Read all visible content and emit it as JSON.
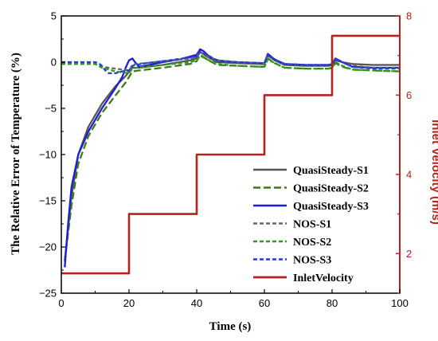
{
  "chart_data": {
    "type": "line",
    "xlabel": "Time (s)",
    "ylabel_left": "The Relative Error of  Temperature (%)",
    "ylabel_right": "Inlet Velocity (m/s)",
    "xlim": [
      0,
      100
    ],
    "ylim_left": [
      -25,
      5
    ],
    "ylim_right": [
      1,
      8
    ],
    "x_ticks": [
      0,
      20,
      40,
      60,
      80,
      100
    ],
    "y_left_ticks": [
      5,
      0,
      -5,
      -10,
      -15,
      -20,
      -25
    ],
    "y_right_ticks": [
      2,
      4,
      6,
      8
    ],
    "y_left_tick_labels": [
      "5",
      "0",
      "−5",
      "−10",
      "−15",
      "−20",
      "−25"
    ],
    "grid": false,
    "legend_position": "lower-right",
    "series": [
      {
        "name": "QuasiSteady-S1",
        "axis": "left",
        "color": "#555555",
        "dash": "solid",
        "x": [
          1,
          3,
          5,
          8,
          12,
          16,
          19,
          21,
          23,
          30,
          38,
          40,
          41,
          43,
          46,
          52,
          59,
          60,
          61,
          63,
          66,
          72,
          79,
          80,
          81,
          83,
          86,
          92,
          100
        ],
        "y": [
          -21.5,
          -14.5,
          -10.0,
          -7.0,
          -4.5,
          -2.6,
          -1.5,
          -0.6,
          -0.6,
          -0.3,
          0.2,
          0.4,
          1.1,
          0.6,
          0.0,
          -0.1,
          -0.2,
          -0.2,
          0.7,
          0.2,
          -0.3,
          -0.4,
          -0.4,
          -0.3,
          0.2,
          0.0,
          -0.2,
          -0.3,
          -0.3
        ]
      },
      {
        "name": "QuasiSteady-S2",
        "axis": "left",
        "color": "#3f7a1a",
        "dash": "long-dash",
        "x": [
          1,
          3,
          5,
          8,
          12,
          16,
          19,
          21,
          23,
          30,
          38,
          40,
          41,
          43,
          46,
          52,
          59,
          60,
          61,
          63,
          66,
          72,
          79,
          80,
          81,
          83,
          86,
          92,
          100
        ],
        "y": [
          -21.5,
          -15.5,
          -11.0,
          -8.0,
          -5.5,
          -3.6,
          -2.2,
          -1.0,
          -0.9,
          -0.6,
          -0.2,
          0.1,
          0.8,
          0.3,
          -0.3,
          -0.4,
          -0.5,
          -0.5,
          0.4,
          -0.1,
          -0.6,
          -0.7,
          -0.7,
          -0.6,
          -0.1,
          -0.5,
          -0.8,
          -0.9,
          -1.0
        ]
      },
      {
        "name": "QuasiSteady-S3",
        "axis": "left",
        "color": "#1f1fd6",
        "dash": "solid",
        "x": [
          1,
          2,
          3,
          5,
          8,
          12,
          16,
          18,
          19,
          20,
          21,
          22,
          23,
          26,
          30,
          35,
          38,
          40,
          41,
          42,
          44,
          47,
          52,
          59,
          60,
          61,
          63,
          66,
          72,
          79,
          80,
          81,
          83,
          86,
          92,
          100
        ],
        "y": [
          -22.2,
          -17.5,
          -13.5,
          -10.0,
          -7.5,
          -5.0,
          -2.8,
          -1.6,
          -0.6,
          0.2,
          0.4,
          -0.1,
          -0.5,
          -0.3,
          0.0,
          0.3,
          0.6,
          0.8,
          1.4,
          1.2,
          0.5,
          0.1,
          0.0,
          -0.1,
          -0.1,
          0.9,
          0.3,
          -0.2,
          -0.3,
          -0.3,
          -0.2,
          0.4,
          0.0,
          -0.5,
          -0.6,
          -0.6
        ]
      },
      {
        "name": "NOS-S1",
        "axis": "left",
        "color": "#666666",
        "dash": "short-dash",
        "x": [
          0,
          5,
          10,
          12,
          14,
          16,
          18,
          20,
          21,
          22,
          25,
          30,
          38,
          40,
          41,
          43,
          46,
          52,
          59,
          60,
          61,
          63,
          66,
          72,
          79,
          80,
          81,
          83,
          86,
          92,
          100
        ],
        "y": [
          -0.2,
          -0.2,
          -0.2,
          -0.5,
          -0.6,
          -0.7,
          -0.8,
          -0.9,
          -0.3,
          -0.2,
          -0.1,
          0.1,
          0.4,
          0.6,
          1.1,
          0.7,
          0.2,
          0.0,
          -0.1,
          -0.1,
          0.7,
          0.3,
          -0.2,
          -0.3,
          -0.3,
          -0.2,
          0.4,
          0.0,
          -0.4,
          -0.6,
          -0.6
        ]
      },
      {
        "name": "NOS-S2",
        "axis": "left",
        "color": "#2e9a1e",
        "dash": "short-dash",
        "x": [
          0,
          5,
          10,
          12,
          14,
          16,
          18,
          20,
          21,
          22,
          25,
          30,
          38,
          40,
          41,
          43,
          46,
          52,
          59,
          60,
          61,
          63,
          66,
          72,
          79,
          80,
          81,
          83,
          86,
          92,
          100
        ],
        "y": [
          -0.2,
          -0.2,
          -0.2,
          -0.6,
          -0.8,
          -1.0,
          -1.1,
          -1.2,
          -0.7,
          -0.6,
          -0.5,
          -0.3,
          0.0,
          0.2,
          0.7,
          0.3,
          -0.2,
          -0.4,
          -0.5,
          -0.5,
          0.3,
          -0.1,
          -0.6,
          -0.7,
          -0.7,
          -0.6,
          0.0,
          -0.4,
          -0.8,
          -0.9,
          -1.0
        ]
      },
      {
        "name": "NOS-S3",
        "axis": "left",
        "color": "#1f3fe0",
        "dash": "short-dash",
        "x": [
          0,
          5,
          10,
          11,
          12,
          13,
          14,
          16,
          18,
          20,
          21,
          22,
          25,
          30,
          38,
          40,
          41,
          43,
          46,
          52,
          59,
          60,
          61,
          63,
          66,
          72,
          79,
          80,
          81,
          83,
          86,
          92,
          100
        ],
        "y": [
          0.0,
          0.0,
          0.0,
          -0.1,
          -0.4,
          -0.9,
          -1.2,
          -1.2,
          -1.0,
          -0.9,
          -0.4,
          -0.3,
          -0.1,
          0.1,
          0.5,
          0.6,
          1.2,
          0.8,
          0.2,
          0.0,
          -0.1,
          -0.1,
          0.8,
          0.3,
          -0.2,
          -0.3,
          -0.3,
          -0.2,
          0.4,
          0.0,
          -0.5,
          -0.7,
          -0.7
        ]
      },
      {
        "name": "InletVelocity",
        "axis": "right",
        "color": "#b5221b",
        "dash": "solid",
        "step": true,
        "x": [
          0,
          20,
          20,
          40,
          40,
          60,
          60,
          80,
          80,
          100
        ],
        "y": [
          1.5,
          1.5,
          3.0,
          3.0,
          4.5,
          4.5,
          6.0,
          6.0,
          7.5,
          7.5
        ]
      }
    ]
  }
}
